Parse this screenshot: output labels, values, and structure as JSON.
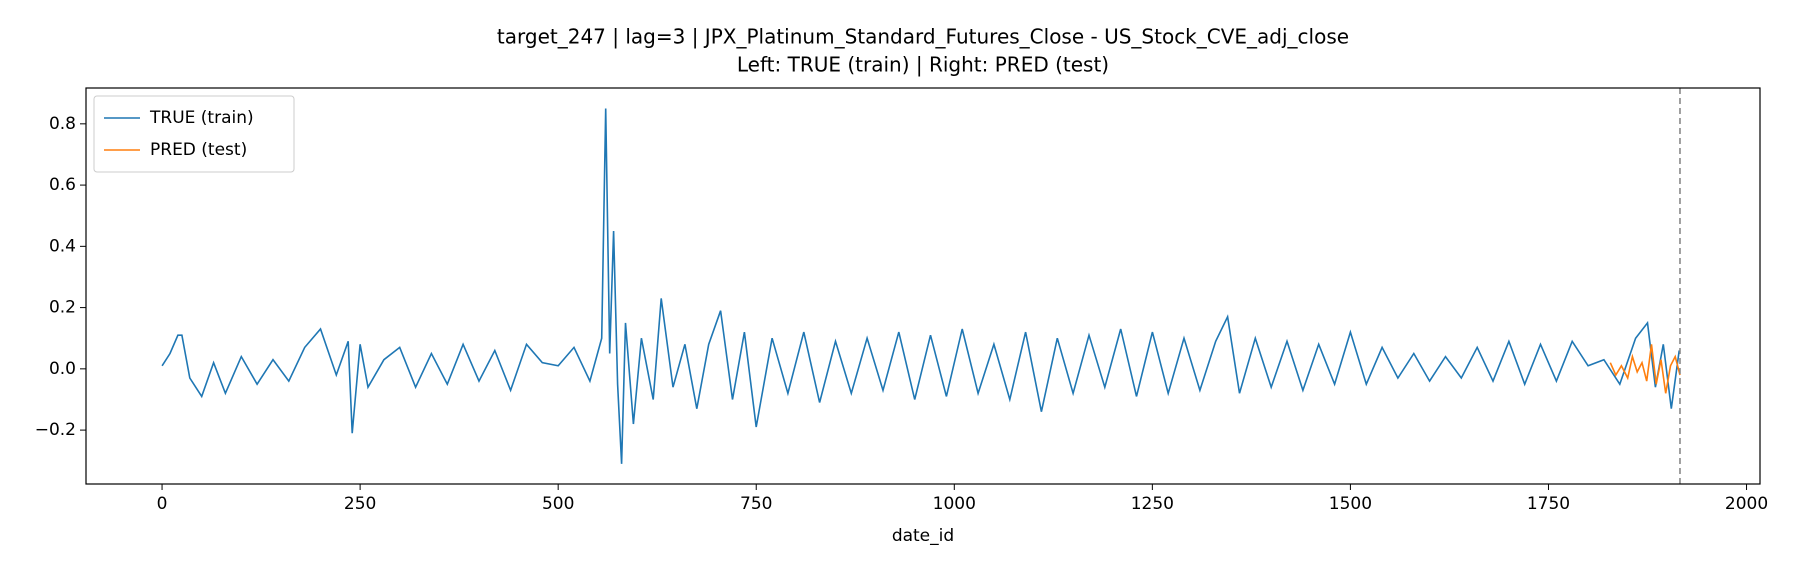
{
  "chart_data": {
    "type": "line",
    "title": "target_247 | lag=3 | JPX_Platinum_Standard_Futures_Close - US_Stock_CVE_adj_close",
    "subtitle": "Left: TRUE (train) | Right: PRED (test)",
    "x_label": "date_id",
    "xlim": [
      -96,
      2017
    ],
    "xticks": [
      0,
      250,
      500,
      750,
      1000,
      1250,
      1500,
      1750,
      2000
    ],
    "ylim": [
      -0.376,
      0.917
    ],
    "yticks": [
      {
        "value": -0.2,
        "label": "−0.2"
      },
      {
        "value": 0,
        "label": "0.0"
      },
      {
        "value": 0.2,
        "label": "0.2"
      },
      {
        "value": 0.4,
        "label": "0.4"
      },
      {
        "value": 0.6,
        "label": "0.6"
      },
      {
        "value": 0.8,
        "label": "0.8"
      }
    ],
    "legend": "upper left",
    "vlines": [
      1916
    ],
    "series": [
      {
        "name": "TRUE (train)",
        "color": "#1f77b4",
        "x": [
          0,
          10,
          20,
          25,
          35,
          50,
          65,
          80,
          100,
          120,
          140,
          160,
          180,
          200,
          220,
          235,
          240,
          250,
          260,
          280,
          300,
          320,
          340,
          360,
          380,
          400,
          420,
          440,
          460,
          480,
          500,
          520,
          540,
          555,
          560,
          565,
          570,
          575,
          580,
          585,
          595,
          605,
          620,
          630,
          645,
          660,
          675,
          690,
          705,
          720,
          735,
          750,
          770,
          790,
          810,
          830,
          850,
          870,
          890,
          910,
          930,
          950,
          970,
          990,
          1010,
          1030,
          1050,
          1070,
          1090,
          1110,
          1130,
          1150,
          1170,
          1190,
          1210,
          1230,
          1250,
          1270,
          1290,
          1310,
          1330,
          1345,
          1360,
          1380,
          1400,
          1420,
          1440,
          1460,
          1480,
          1500,
          1520,
          1540,
          1560,
          1580,
          1600,
          1620,
          1640,
          1660,
          1680,
          1700,
          1720,
          1740,
          1760,
          1780,
          1800,
          1820,
          1840,
          1860,
          1875,
          1885,
          1895,
          1905,
          1915
        ],
        "values": [
          0.01,
          0.05,
          0.11,
          0.11,
          -0.03,
          -0.09,
          0.02,
          -0.08,
          0.04,
          -0.05,
          0.03,
          -0.04,
          0.07,
          0.13,
          -0.02,
          0.09,
          -0.21,
          0.08,
          -0.06,
          0.03,
          0.07,
          -0.06,
          0.05,
          -0.05,
          0.08,
          -0.04,
          0.06,
          -0.07,
          0.08,
          0.02,
          0.01,
          0.07,
          -0.04,
          0.1,
          0.85,
          0.05,
          0.45,
          -0.05,
          -0.31,
          0.15,
          -0.18,
          0.1,
          -0.1,
          0.23,
          -0.06,
          0.08,
          -0.13,
          0.08,
          0.19,
          -0.1,
          0.12,
          -0.19,
          0.1,
          -0.08,
          0.12,
          -0.11,
          0.09,
          -0.08,
          0.1,
          -0.07,
          0.12,
          -0.1,
          0.11,
          -0.09,
          0.13,
          -0.08,
          0.08,
          -0.1,
          0.12,
          -0.14,
          0.1,
          -0.08,
          0.11,
          -0.06,
          0.13,
          -0.09,
          0.12,
          -0.08,
          0.1,
          -0.07,
          0.09,
          0.17,
          -0.08,
          0.1,
          -0.06,
          0.09,
          -0.07,
          0.08,
          -0.05,
          0.12,
          -0.05,
          0.07,
          -0.03,
          0.05,
          -0.04,
          0.04,
          -0.03,
          0.07,
          -0.04,
          0.09,
          -0.05,
          0.08,
          -0.04,
          0.09,
          0.01,
          0.03,
          -0.05,
          0.1,
          0.15,
          -0.06,
          0.08,
          -0.13,
          0.06
        ]
      },
      {
        "name": "PRED (test)",
        "color": "#ff7f0e",
        "x": [
          1828,
          1835,
          1842,
          1850,
          1856,
          1862,
          1868,
          1874,
          1880,
          1886,
          1892,
          1898,
          1904,
          1910,
          1916
        ],
        "values": [
          0.02,
          -0.02,
          0.01,
          -0.03,
          0.04,
          -0.01,
          0.02,
          -0.04,
          0.08,
          -0.05,
          0.03,
          -0.08,
          0.01,
          0.04,
          -0.02
        ]
      }
    ]
  }
}
